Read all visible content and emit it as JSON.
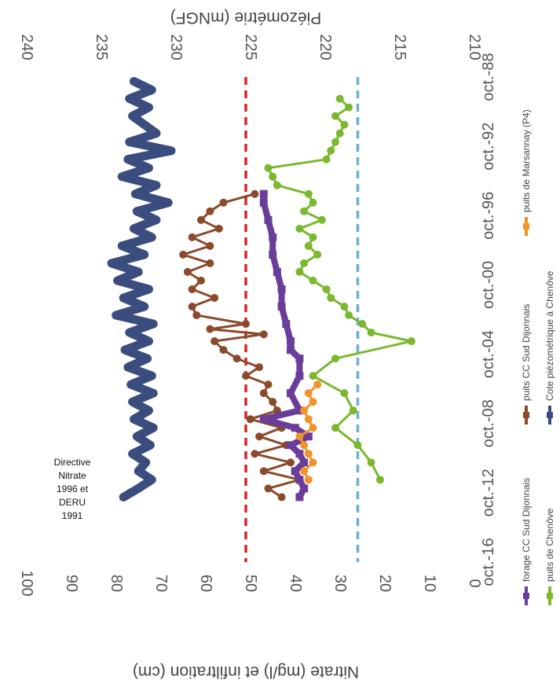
{
  "chart_data": {
    "type": "line",
    "orientation": "rotated-90-clockwise",
    "x_ticks": [
      "oct.-88",
      "oct.-92",
      "oct.-96",
      "oct.-00",
      "oct.-04",
      "oct.-08",
      "oct.-12",
      "oct.-16"
    ],
    "xlim": [
      1988.75,
      2016.75
    ],
    "y_left": {
      "label": "Nitrate (mg/l) et infiltration (cm)",
      "ticks": [
        0,
        10,
        20,
        30,
        40,
        50,
        60,
        70,
        80,
        90,
        100
      ],
      "ylim": [
        0,
        100
      ]
    },
    "y_right": {
      "label": "Piézométrie (mNGF)",
      "ticks": [
        210,
        215,
        220,
        225,
        230,
        235,
        240
      ],
      "ylim": [
        210,
        240
      ]
    },
    "reference_lines": [
      {
        "value": 50,
        "color": "#d62728",
        "style": "dashed"
      },
      {
        "value": 25,
        "color": "#6baed6",
        "style": "dashed"
      }
    ],
    "annotation": [
      "Directive",
      "Nitrate",
      "1996 et",
      "DERU",
      "1991"
    ],
    "annotation_x": 1993.5,
    "series": [
      {
        "name": "Cote piézométrique à Chenôve",
        "axis": "right",
        "color": "#3a4d7e",
        "width": 11,
        "x": [
          1989,
          1989.5,
          1990,
          1990.5,
          1991,
          1991.5,
          1992,
          1992.5,
          1993,
          1993.5,
          1994,
          1994.5,
          1995,
          1995.5,
          1996,
          1996.5,
          1997,
          1997.5,
          1998,
          1998.5,
          1999,
          1999.5,
          2000,
          2000.5,
          2001,
          2001.5,
          2002,
          2002.5,
          2003,
          2003.5,
          2004,
          2004.5,
          2005,
          2005.5,
          2006,
          2006.5,
          2007,
          2007.5,
          2008,
          2008.5,
          2009,
          2009.5,
          2010,
          2010.5,
          2011,
          2011.5,
          2012,
          2012.5,
          2013
        ],
        "values": [
          232.5,
          231.3,
          232.8,
          231.5,
          232.6,
          231.8,
          231,
          232.8,
          230,
          232.9,
          231.5,
          233.3,
          231,
          232.4,
          230.2,
          232.3,
          231,
          232.5,
          231.3,
          233.3,
          231.8,
          234,
          232.2,
          233.6,
          231.5,
          233.2,
          231.8,
          233.7,
          231.2,
          232.8,
          231.5,
          233.1,
          231.6,
          232.9,
          231.3,
          232.7,
          231.2,
          232.6,
          231.5,
          232.5,
          231.2,
          232.3,
          231.4,
          232.6,
          231.7,
          232.2,
          231.3,
          232.2,
          233.2
        ]
      },
      {
        "name": "puits CC Sud Dijonnais",
        "axis": "left",
        "color": "#8b4a2b",
        "width": 3,
        "x": [
          1995.5,
          1996,
          1996.5,
          1997,
          1997.5,
          1998,
          1998.5,
          1999,
          1999.5,
          2000,
          2000.5,
          2001,
          2001.5,
          2002,
          2002.5,
          2003,
          2003.3,
          2003.6,
          2004,
          2004.5,
          2005,
          2005.5,
          2006,
          2006.5,
          2007,
          2007.5,
          2008,
          2008.5,
          2009,
          2009.5,
          2010,
          2010.5,
          2011,
          2011.5,
          2012,
          2012.5,
          2013
        ],
        "values": [
          48,
          55,
          58,
          60,
          56,
          62,
          58,
          64,
          58,
          63,
          60,
          62,
          57,
          62,
          61,
          50,
          58,
          46,
          57,
          55,
          52,
          47,
          50,
          45,
          46,
          44,
          43,
          49,
          42,
          47,
          41,
          48,
          40,
          46,
          38,
          45,
          42
        ]
      },
      {
        "name": "forage CC Sud Dijonnais",
        "axis": "left",
        "color": "#6a3d9a",
        "width": 8,
        "x": [
          1995.5,
          1996,
          1997,
          1998,
          1999,
          2000,
          2001,
          2002,
          2003,
          2004,
          2004.5,
          2005,
          2006,
          2007,
          2008,
          2008.5,
          2009,
          2009.5,
          2010,
          2010.5,
          2011,
          2011.5,
          2012,
          2012.5,
          2013
        ],
        "values": [
          46,
          46,
          45,
          44,
          44,
          43,
          42,
          42,
          41,
          40,
          40,
          38,
          38,
          40,
          38,
          46,
          39,
          36,
          40,
          38,
          37,
          39,
          38,
          37,
          38
        ]
      },
      {
        "name": "puits de Chenôve",
        "axis": "left",
        "color": "#7ab82e",
        "width": 3,
        "x": [
          1990,
          1990.5,
          1991,
          1991.5,
          1992,
          1992.5,
          1993,
          1993.5,
          1994,
          1994.5,
          1995,
          1995.5,
          1996,
          1996.5,
          1997,
          1997.5,
          1998,
          1998.5,
          1999,
          1999.5,
          2000,
          2000.5,
          2001,
          2001.5,
          2002,
          2002.5,
          2003,
          2003.5,
          2004,
          2005,
          2006,
          2007,
          2008,
          2009,
          2010,
          2011,
          2012
        ],
        "values": [
          29,
          27,
          30,
          28,
          29,
          30,
          31,
          32,
          45,
          44,
          43,
          36,
          35,
          37,
          33,
          38,
          35,
          36,
          34,
          37,
          38,
          35,
          32,
          31,
          28,
          27,
          24,
          22,
          13,
          30,
          35,
          28,
          26,
          30,
          25,
          22,
          20
        ]
      },
      {
        "name": "puits de Marsannay (P4)",
        "axis": "left",
        "color": "#f0932b",
        "width": 3,
        "x": [
          2006.5,
          2007,
          2007.5,
          2008,
          2008.5,
          2009,
          2009.5,
          2010,
          2010.5,
          2011,
          2011.5,
          2012
        ],
        "values": [
          34,
          36,
          35,
          37,
          36,
          35,
          38,
          37,
          36,
          35,
          37,
          36
        ]
      }
    ],
    "legend": [
      {
        "label": "forage CC Sud Dijonnais",
        "color": "#6a3d9a"
      },
      {
        "label": "puits CC Sud Dijonnais",
        "color": "#8b4a2b"
      },
      {
        "label": "puits de Marsannay (P4)",
        "color": "#f0932b"
      },
      {
        "label": "puits de Chenôve",
        "color": "#7ab82e"
      },
      {
        "label": "Cote piézométrique à Chenôve",
        "color": "#3a4d7e"
      }
    ],
    "grid": false,
    "legend_position": "bottom"
  }
}
